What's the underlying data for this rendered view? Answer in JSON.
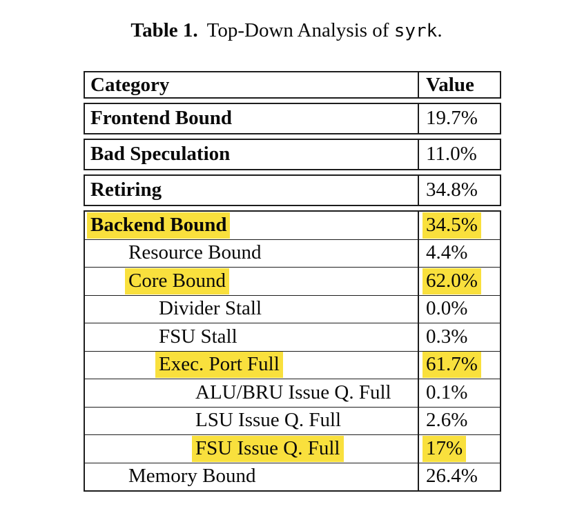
{
  "caption": {
    "label": "Table 1.",
    "text": "Top-Down Analysis of",
    "code": "syrk",
    "suffix": "."
  },
  "table": {
    "header": {
      "category": "Category",
      "value": "Value"
    },
    "highlight_color": "#F9E03D",
    "rows": [
      {
        "category": "Frontend Bound",
        "value": "19.7%",
        "level": 0,
        "bold": true,
        "highlight": false
      },
      {
        "category": "Bad Speculation",
        "value": "11.0%",
        "level": 0,
        "bold": true,
        "highlight": false
      },
      {
        "category": "Retiring",
        "value": "34.8%",
        "level": 0,
        "bold": true,
        "highlight": false
      },
      {
        "category": "Backend Bound",
        "value": "34.5%",
        "level": 0,
        "bold": true,
        "highlight": true
      },
      {
        "category": "Resource Bound",
        "value": "4.4%",
        "level": 1,
        "bold": false,
        "highlight": false
      },
      {
        "category": "Core Bound",
        "value": "62.0%",
        "level": 1,
        "bold": false,
        "highlight": true
      },
      {
        "category": "Divider Stall",
        "value": "0.0%",
        "level": 2,
        "bold": false,
        "highlight": false
      },
      {
        "category": "FSU Stall",
        "value": "0.3%",
        "level": 2,
        "bold": false,
        "highlight": false
      },
      {
        "category": "Exec. Port Full",
        "value": "61.7%",
        "level": 2,
        "bold": false,
        "highlight": true
      },
      {
        "category": "ALU/BRU Issue Q. Full",
        "value": "0.1%",
        "level": 3,
        "bold": false,
        "highlight": false
      },
      {
        "category": "LSU Issue Q. Full",
        "value": "2.6%",
        "level": 3,
        "bold": false,
        "highlight": false
      },
      {
        "category": "FSU Issue Q. Full",
        "value": "17%",
        "level": 3,
        "bold": false,
        "highlight": true
      },
      {
        "category": "Memory Bound",
        "value": "26.4%",
        "level": 1,
        "bold": false,
        "highlight": false
      }
    ]
  }
}
